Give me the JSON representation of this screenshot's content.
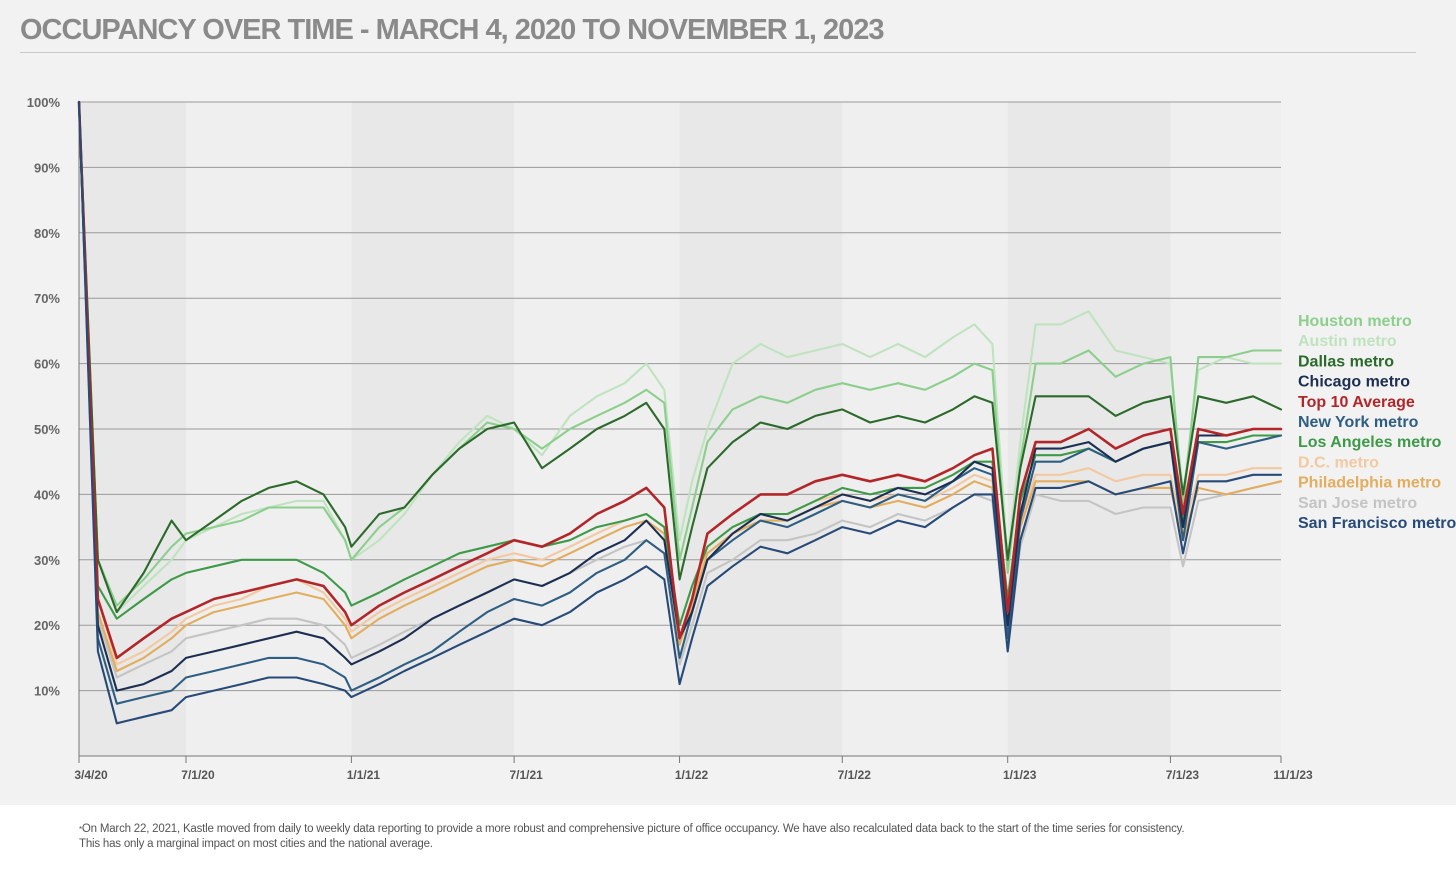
{
  "title": "OCCUPANCY OVER TIME - MARCH 4, 2020 TO NOVEMBER 1, 2023",
  "footnote": {
    "marker": "*",
    "line1": "On March 22, 2021, Kastle moved from daily to weekly data reporting to provide a more robust and comprehensive picture of office occupancy. We have also recalculated data back to the start of the time series for consistency.",
    "line2": "This has only a marginal impact on most cities and the national average."
  },
  "chart_data": {
    "type": "line",
    "title": "OCCUPANCY OVER TIME - MARCH 4, 2020 TO NOVEMBER 1, 2023",
    "xlabel": "",
    "ylabel": "",
    "x_ticks": [
      "3/4/20",
      "7/1/20",
      "1/1/21",
      "7/1/21",
      "1/1/22",
      "7/1/22",
      "1/1/23",
      "7/1/23",
      "11/1/23"
    ],
    "y_ticks": [
      "100%",
      "90%",
      "80%",
      "70%",
      "60%",
      "50%",
      "40%",
      "30%",
      "20%",
      "10%"
    ],
    "x_range": [
      "3/4/20",
      "11/1/23"
    ],
    "ylim": [
      0,
      100
    ],
    "grid": "horizontal",
    "legend_position": "right",
    "x": [
      "3/4/20",
      "3/25/20",
      "4/15/20",
      "5/15/20",
      "6/15/20",
      "7/1/20",
      "8/1/20",
      "9/1/20",
      "10/1/20",
      "11/1/20",
      "12/1/20",
      "12/25/20",
      "1/1/21",
      "2/1/21",
      "3/1/21",
      "4/1/21",
      "5/1/21",
      "6/1/21",
      "7/1/21",
      "8/1/21",
      "9/1/21",
      "10/1/21",
      "11/1/21",
      "11/25/21",
      "12/15/21",
      "1/1/22",
      "1/15/22",
      "2/1/22",
      "3/1/22",
      "4/1/22",
      "5/1/22",
      "6/1/22",
      "7/1/22",
      "8/1/22",
      "9/1/22",
      "10/1/22",
      "11/1/22",
      "11/25/22",
      "12/15/22",
      "1/1/23",
      "1/15/23",
      "2/1/23",
      "3/1/23",
      "4/1/23",
      "5/1/23",
      "6/1/23",
      "7/1/23",
      "7/15/23",
      "8/1/23",
      "9/1/23",
      "10/1/23",
      "11/1/23"
    ],
    "series": [
      {
        "name": "Houston metro",
        "color": "#8ccf8c",
        "values": [
          100,
          30,
          23,
          27,
          32,
          34,
          35,
          36,
          38,
          38,
          38,
          33,
          30,
          35,
          38,
          43,
          47,
          51,
          50,
          47,
          50,
          52,
          54,
          56,
          54,
          30,
          38,
          48,
          53,
          55,
          54,
          56,
          57,
          56,
          57,
          56,
          58,
          60,
          59,
          28,
          45,
          60,
          60,
          62,
          58,
          60,
          61,
          38,
          61,
          61,
          62,
          62
        ]
      },
      {
        "name": "Austin metro",
        "color": "#bfe3bf",
        "values": [
          100,
          30,
          22,
          26,
          30,
          33,
          35,
          37,
          38,
          39,
          39,
          33,
          30,
          33,
          37,
          43,
          48,
          52,
          50,
          46,
          52,
          55,
          57,
          60,
          56,
          33,
          42,
          50,
          60,
          63,
          61,
          62,
          63,
          61,
          63,
          61,
          64,
          66,
          63,
          30,
          48,
          66,
          66,
          68,
          62,
          61,
          60,
          40,
          59,
          61,
          60,
          60
        ]
      },
      {
        "name": "Dallas metro",
        "color": "#2b6a2b",
        "values": [
          100,
          30,
          22,
          28,
          36,
          33,
          36,
          39,
          41,
          42,
          40,
          35,
          32,
          37,
          38,
          43,
          47,
          50,
          51,
          44,
          47,
          50,
          52,
          54,
          50,
          27,
          35,
          44,
          48,
          51,
          50,
          52,
          53,
          51,
          52,
          51,
          53,
          55,
          54,
          30,
          44,
          55,
          55,
          55,
          52,
          54,
          55,
          40,
          55,
          54,
          55,
          53
        ]
      },
      {
        "name": "Chicago metro",
        "color": "#1c2f52",
        "values": [
          100,
          20,
          10,
          11,
          13,
          15,
          16,
          17,
          18,
          19,
          18,
          15,
          14,
          16,
          18,
          21,
          23,
          25,
          27,
          26,
          28,
          31,
          33,
          36,
          33,
          18,
          22,
          30,
          34,
          37,
          36,
          38,
          40,
          39,
          41,
          40,
          42,
          45,
          44,
          20,
          37,
          47,
          47,
          48,
          45,
          47,
          48,
          35,
          49,
          49,
          50,
          50
        ]
      },
      {
        "name": "Top 10 Average",
        "color": "#b2262a",
        "values": [
          100,
          24,
          15,
          18,
          21,
          22,
          24,
          25,
          26,
          27,
          26,
          22,
          20,
          23,
          25,
          27,
          29,
          31,
          33,
          32,
          34,
          37,
          39,
          41,
          38,
          18,
          24,
          34,
          37,
          40,
          40,
          42,
          43,
          42,
          43,
          42,
          44,
          46,
          47,
          22,
          40,
          48,
          48,
          50,
          47,
          49,
          50,
          37,
          50,
          49,
          50,
          50
        ]
      },
      {
        "name": "New York metro",
        "color": "#2e5e82",
        "values": [
          100,
          18,
          8,
          9,
          10,
          12,
          13,
          14,
          15,
          15,
          14,
          12,
          10,
          12,
          14,
          16,
          19,
          22,
          24,
          23,
          25,
          28,
          30,
          33,
          31,
          15,
          22,
          30,
          33,
          36,
          35,
          37,
          39,
          38,
          40,
          39,
          42,
          44,
          43,
          18,
          36,
          45,
          45,
          47,
          45,
          47,
          48,
          33,
          48,
          47,
          48,
          49
        ]
      },
      {
        "name": "Los Angeles metro",
        "color": "#3e9a48",
        "values": [
          100,
          26,
          21,
          24,
          27,
          28,
          29,
          30,
          30,
          30,
          28,
          25,
          23,
          25,
          27,
          29,
          31,
          32,
          33,
          32,
          33,
          35,
          36,
          37,
          35,
          20,
          26,
          32,
          35,
          37,
          37,
          39,
          41,
          40,
          41,
          41,
          43,
          45,
          45,
          24,
          39,
          46,
          46,
          47,
          45,
          47,
          48,
          36,
          48,
          48,
          49,
          49
        ]
      },
      {
        "name": "D.C. metro",
        "color": "#f2c9a0",
        "values": [
          100,
          24,
          14,
          16,
          19,
          21,
          23,
          24,
          26,
          27,
          25,
          21,
          19,
          22,
          24,
          26,
          28,
          30,
          31,
          30,
          32,
          34,
          36,
          37,
          35,
          18,
          24,
          32,
          35,
          37,
          37,
          39,
          40,
          39,
          40,
          39,
          41,
          43,
          42,
          20,
          36,
          43,
          43,
          44,
          42,
          43,
          43,
          34,
          43,
          43,
          44,
          44
        ]
      },
      {
        "name": "Philadelphia metro",
        "color": "#e3ad5e",
        "values": [
          100,
          22,
          13,
          15,
          18,
          20,
          22,
          23,
          24,
          25,
          24,
          20,
          18,
          21,
          23,
          25,
          27,
          29,
          30,
          29,
          31,
          33,
          35,
          36,
          34,
          17,
          23,
          31,
          34,
          36,
          36,
          38,
          39,
          38,
          39,
          38,
          40,
          42,
          41,
          19,
          35,
          42,
          42,
          42,
          40,
          41,
          41,
          33,
          41,
          40,
          41,
          42
        ]
      },
      {
        "name": "San Jose metro",
        "color": "#c4c4c4",
        "values": [
          100,
          21,
          12,
          14,
          16,
          18,
          19,
          20,
          21,
          21,
          20,
          17,
          15,
          17,
          19,
          21,
          23,
          25,
          27,
          26,
          28,
          30,
          32,
          33,
          31,
          14,
          20,
          28,
          30,
          33,
          33,
          34,
          36,
          35,
          37,
          36,
          38,
          40,
          39,
          16,
          32,
          40,
          39,
          39,
          37,
          38,
          38,
          29,
          39,
          40,
          41,
          42
        ]
      },
      {
        "name": "San Francisco metro",
        "color": "#274a78",
        "values": [
          100,
          16,
          5,
          6,
          7,
          9,
          10,
          11,
          12,
          12,
          11,
          10,
          9,
          11,
          13,
          15,
          17,
          19,
          21,
          20,
          22,
          25,
          27,
          29,
          27,
          11,
          18,
          26,
          29,
          32,
          31,
          33,
          35,
          34,
          36,
          35,
          38,
          40,
          40,
          16,
          33,
          41,
          41,
          42,
          40,
          41,
          42,
          31,
          42,
          42,
          43,
          43
        ]
      }
    ]
  }
}
